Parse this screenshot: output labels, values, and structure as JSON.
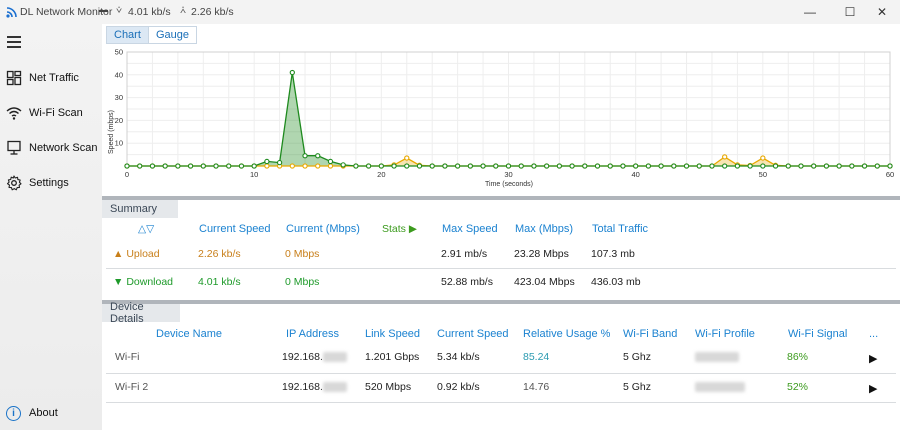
{
  "titlebar": {
    "app_title": "DL Network Monitor",
    "download_speed": "4.01 kb/s",
    "upload_speed": "2.26 kb/s",
    "minimize": "—",
    "maximize": "☐",
    "close": "✕"
  },
  "sidebar": {
    "items": [
      {
        "label": "Net Traffic",
        "icon": "dashboard-icon"
      },
      {
        "label": "Wi-Fi Scan",
        "icon": "wifi-icon"
      },
      {
        "label": "Network Scan",
        "icon": "monitor-icon"
      },
      {
        "label": "Settings",
        "icon": "gear-icon"
      }
    ],
    "about": "About"
  },
  "tabs": [
    {
      "label": "Chart",
      "active": true
    },
    {
      "label": "Gauge",
      "active": false
    }
  ],
  "chart_data": {
    "type": "line",
    "ylabel": "Speed (mbps)",
    "xlabel": "Time (seconds)",
    "xlim": [
      0,
      60
    ],
    "ylim": [
      0,
      50
    ],
    "x_ticks": [
      "0",
      "10",
      "20",
      "30",
      "40",
      "50",
      "60"
    ],
    "y_ticks": [
      "10",
      "20",
      "30",
      "40",
      "50"
    ],
    "series": [
      {
        "color": "#1e8a1e",
        "x": [
          0,
          1,
          2,
          3,
          4,
          5,
          6,
          7,
          8,
          9,
          10,
          11,
          12,
          13,
          14,
          15,
          16,
          17,
          18,
          19,
          20,
          21,
          22,
          23,
          24,
          25,
          26,
          27,
          28,
          29,
          30,
          31,
          32,
          33,
          34,
          35,
          36,
          37,
          38,
          39,
          40,
          41,
          42,
          43,
          44,
          45,
          46,
          47,
          48,
          49,
          50,
          51,
          52,
          53,
          54,
          55,
          56,
          57,
          58,
          59,
          60
        ],
        "values": [
          0,
          0,
          0,
          0,
          0,
          0,
          0,
          0,
          0,
          0,
          0,
          2,
          1.5,
          41,
          4.5,
          4.5,
          2,
          0.5,
          0,
          0,
          0,
          0,
          0,
          0,
          0,
          0,
          0,
          0,
          0,
          0,
          0,
          0,
          0,
          0,
          0,
          0,
          0,
          0,
          0,
          0,
          0,
          0,
          0,
          0,
          0,
          0,
          0,
          0,
          0,
          0,
          0,
          0,
          0,
          0,
          0,
          0,
          0,
          0,
          0,
          0,
          0
        ]
      },
      {
        "color": "#e8a800",
        "x": [
          0,
          1,
          2,
          3,
          4,
          5,
          6,
          7,
          8,
          9,
          10,
          11,
          12,
          13,
          14,
          15,
          16,
          17,
          18,
          19,
          20,
          21,
          22,
          23,
          24,
          25,
          26,
          27,
          28,
          29,
          30,
          31,
          32,
          33,
          34,
          35,
          36,
          37,
          38,
          39,
          40,
          41,
          42,
          43,
          44,
          45,
          46,
          47,
          48,
          49,
          50,
          51,
          52,
          53,
          54,
          55,
          56,
          57,
          58,
          59,
          60
        ],
        "values": [
          0,
          0,
          0,
          0,
          0,
          0,
          0,
          0,
          0,
          0,
          0,
          0,
          0,
          0,
          0,
          0,
          0,
          0,
          0,
          0,
          0,
          0.5,
          3.5,
          0.3,
          0,
          0,
          0,
          0,
          0,
          0,
          0,
          0,
          0,
          0,
          0,
          0,
          0,
          0,
          0,
          0,
          0,
          0,
          0,
          0,
          0,
          0,
          0,
          4,
          0.5,
          0.2,
          3.5,
          0.3,
          0,
          0,
          0,
          0,
          0,
          0,
          0,
          0,
          0
        ]
      }
    ],
    "grid": true,
    "legend": "none"
  },
  "summary": {
    "title": "Summary",
    "sort_icon": "△▽",
    "headers": [
      "Current Speed",
      "Current (Mbps)",
      "Stats",
      "Max Speed",
      "Max (Mbps)",
      "Total Traffic"
    ],
    "stats_arrow": "▶",
    "rows": [
      {
        "label": "Upload",
        "arrow": "▲",
        "current_speed": "2.26 kb/s",
        "current_mbps": "0 Mbps",
        "max_speed": "2.91 mb/s",
        "max_mbps": "23.28 Mbps",
        "total": "107.3 mb"
      },
      {
        "label": "Download",
        "arrow": "▼",
        "current_speed": "4.01 kb/s",
        "current_mbps": "0 Mbps",
        "max_speed": "52.88 mb/s",
        "max_mbps": "423.04 Mbps",
        "total": "436.03 mb"
      }
    ]
  },
  "devices": {
    "title": "Device Details",
    "headers": [
      "Device Name",
      "IP Address",
      "Link Speed",
      "Current Speed",
      "Relative Usage %",
      "Wi-Fi Band",
      "Wi-Fi Profile",
      "Wi-Fi Signal",
      "..."
    ],
    "rows": [
      {
        "name": "Wi-Fi",
        "ip": "192.168.",
        "link": "1.201 Gbps",
        "speed": "5.34 kb/s",
        "usage": "85.24",
        "band": "5 Ghz",
        "signal": "86%",
        "action": "▶"
      },
      {
        "name": "Wi-Fi 2",
        "ip": "192.168.",
        "link": "520 Mbps",
        "speed": "0.92 kb/s",
        "usage": "14.76",
        "band": "5 Ghz",
        "signal": "52%",
        "action": "▶"
      }
    ]
  }
}
